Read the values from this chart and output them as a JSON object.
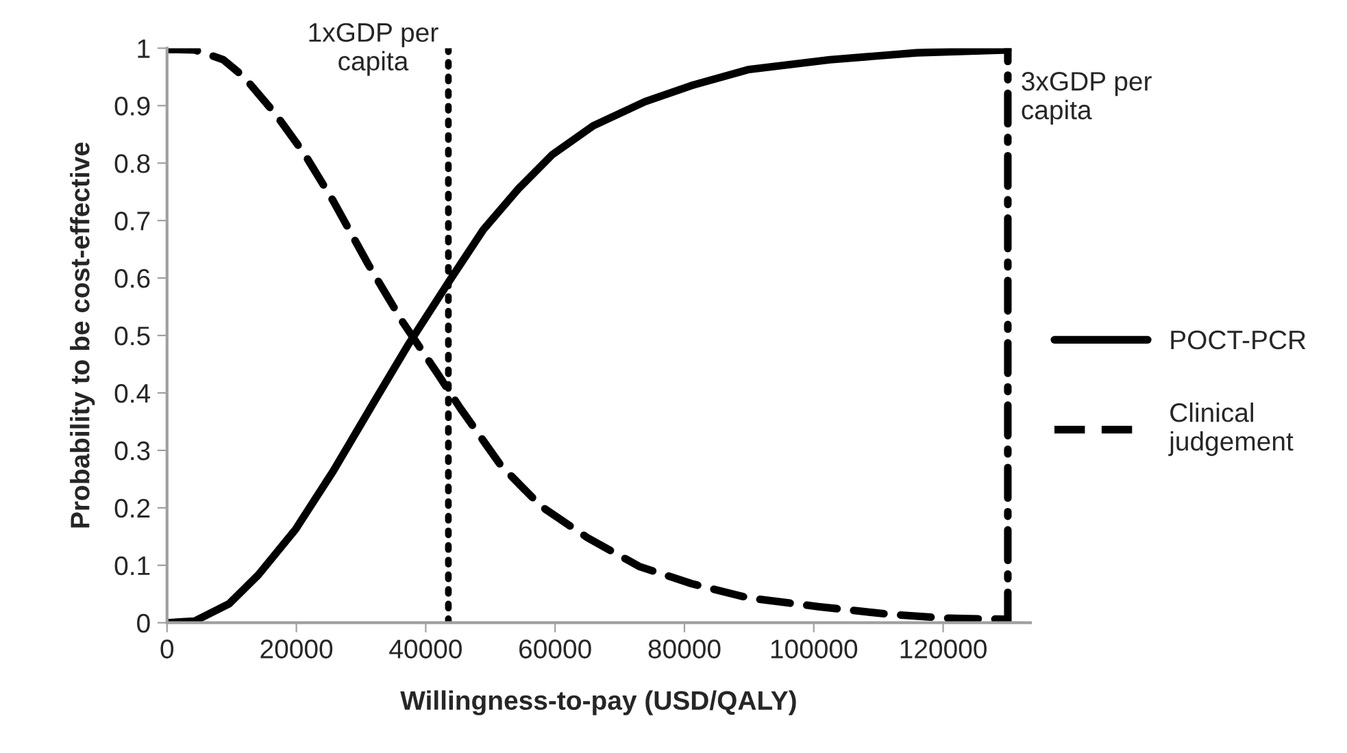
{
  "chart_data": {
    "type": "line",
    "xlabel": "Willingness-to-pay (USD/QALY)",
    "ylabel": "Probability to be cost-effective",
    "series": [
      {
        "name": "POCT-PCR",
        "color": "#000000",
        "line_style": "solid",
        "x": [
          0,
          4300,
          9600,
          14100,
          19900,
          25700,
          32000,
          37300,
          43600,
          48900,
          54300,
          59600,
          65900,
          73900,
          81100,
          90000,
          102500,
          115900,
          130000
        ],
        "values": [
          0,
          0.003,
          0.033,
          0.083,
          0.163,
          0.264,
          0.384,
          0.484,
          0.594,
          0.684,
          0.755,
          0.815,
          0.865,
          0.907,
          0.935,
          0.963,
          0.98,
          0.992,
          0.997
        ]
      },
      {
        "name": "Clinical judgement",
        "color": "#000000",
        "line_style": "dashed",
        "x": [
          0,
          4300,
          8700,
          11900,
          16800,
          21300,
          25700,
          31100,
          36400,
          41800,
          45300,
          51600,
          57800,
          65000,
          73000,
          81100,
          90000,
          100700,
          111400,
          120300,
          129300
        ],
        "values": [
          0.998,
          0.997,
          0.98,
          0.95,
          0.885,
          0.815,
          0.734,
          0.624,
          0.524,
          0.434,
          0.374,
          0.274,
          0.203,
          0.148,
          0.098,
          0.068,
          0.043,
          0.028,
          0.015,
          0.008,
          0.006
        ]
      }
    ],
    "ref_lines": [
      {
        "axis": "x",
        "value": 43500,
        "label": "1xGDP per capita",
        "color": "#000000",
        "line_style": "dotted"
      },
      {
        "axis": "x",
        "value": 130000,
        "label": "3xGDP per capita",
        "color": "#000000",
        "line_style": "dashdot"
      }
    ],
    "xlim": [
      0,
      133500
    ],
    "xticks": [
      0,
      20000,
      40000,
      60000,
      80000,
      100000,
      120000
    ],
    "ylim": [
      0,
      1
    ],
    "yticks": [
      0,
      0.1,
      0.2,
      0.3,
      0.4,
      0.5,
      0.6,
      0.7,
      0.8,
      0.9,
      1
    ],
    "grid": false,
    "legend": "right",
    "marker": "none"
  }
}
